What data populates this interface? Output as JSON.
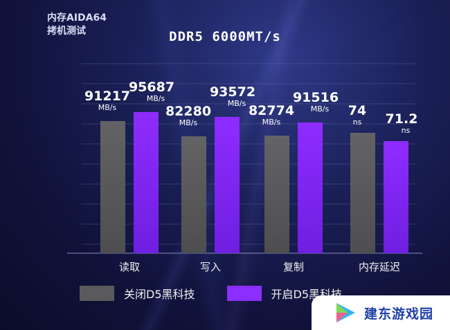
{
  "header": {
    "test_title_line1": "内存AIDA64",
    "test_title_line2": "拷机测试",
    "chart_title": "DDR5 6000MT/s"
  },
  "legend": {
    "off_label": "关闭D5黑科技",
    "on_label": "开启D5黑科技"
  },
  "colors": {
    "off": "#5a5a5c",
    "on": "#8a2fff",
    "grid": "#6f74a8"
  },
  "watermark": {
    "text": "建东游戏园"
  },
  "chart_data": {
    "type": "bar",
    "categories": [
      "读取",
      "写入",
      "复制",
      "内存延迟"
    ],
    "series": [
      {
        "name": "关闭D5黑科技",
        "values": [
          91217,
          82280,
          82774,
          74
        ],
        "labels": [
          "91217",
          "82280",
          "82774",
          "74"
        ]
      },
      {
        "name": "开启D5黑科技",
        "values": [
          95687,
          93572,
          91516,
          71.2
        ],
        "labels": [
          "95687",
          "93572",
          "91516",
          "71.2"
        ]
      }
    ],
    "units": [
      "MB/s",
      "MB/s",
      "MB/s",
      "ns"
    ],
    "title": "DDR5 6000MT/s",
    "xlabel": "",
    "ylabel": "",
    "grid": true,
    "legend_position": "bottom-left"
  }
}
